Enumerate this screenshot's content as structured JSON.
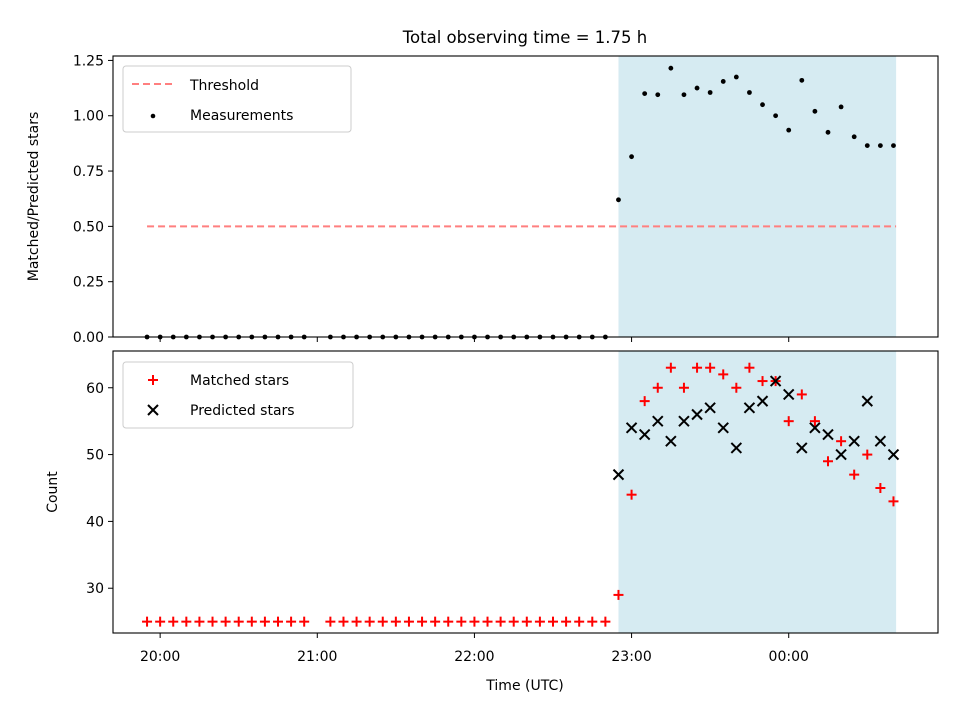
{
  "chart_data": [
    {
      "type": "scatter",
      "title": "Total observing time = 1.75 h",
      "ylabel": "Matched/Predicted stars",
      "xlabel": "",
      "xlim": [
        "19:42",
        "00:57"
      ],
      "ylim": [
        0,
        1.27
      ],
      "yticks": [
        "0.00",
        "0.25",
        "0.50",
        "0.75",
        "1.00",
        "1.25"
      ],
      "legend_position": "top-left",
      "grid": false,
      "shaded_region": {
        "start": "22:55",
        "end": "00:41",
        "color": "#add8e6"
      },
      "threshold": {
        "name": "Threshold",
        "value": 0.5,
        "from": "19:55",
        "to": "00:41",
        "color": "#ff7f7f",
        "style": "dashed"
      },
      "series": [
        {
          "name": "Measurements",
          "marker": "dot",
          "color": "#000000",
          "x": [
            "19:55",
            "20:00",
            "20:05",
            "20:10",
            "20:15",
            "20:20",
            "20:25",
            "20:30",
            "20:35",
            "20:40",
            "20:45",
            "20:50",
            "20:55",
            "21:05",
            "21:10",
            "21:15",
            "21:20",
            "21:25",
            "21:30",
            "21:35",
            "21:40",
            "21:45",
            "21:50",
            "21:55",
            "22:00",
            "22:05",
            "22:10",
            "22:15",
            "22:20",
            "22:25",
            "22:30",
            "22:35",
            "22:40",
            "22:45",
            "22:50",
            "22:55",
            "23:00",
            "23:05",
            "23:10",
            "23:15",
            "23:20",
            "23:25",
            "23:30",
            "23:35",
            "23:40",
            "23:45",
            "23:50",
            "23:55",
            "00:00",
            "00:05",
            "00:10",
            "00:15",
            "00:20",
            "00:25",
            "00:30",
            "00:35",
            "00:40"
          ],
          "y": [
            0,
            0,
            0,
            0,
            0,
            0,
            0,
            0,
            0,
            0,
            0,
            0,
            0,
            0,
            0,
            0,
            0,
            0,
            0,
            0,
            0,
            0,
            0,
            0,
            0,
            0,
            0,
            0,
            0,
            0,
            0,
            0,
            0,
            0,
            0,
            0.62,
            0.815,
            1.1,
            1.095,
            1.215,
            1.095,
            1.125,
            1.105,
            1.155,
            1.175,
            1.105,
            1.05,
            1.0,
            0.935,
            1.16,
            1.02,
            0.925,
            1.04,
            0.905,
            0.865,
            0.865,
            0.865
          ]
        }
      ]
    },
    {
      "type": "scatter",
      "title": "",
      "ylabel": "Count",
      "xlabel": "Time (UTC)",
      "xlim": [
        "19:42",
        "00:57"
      ],
      "ylim": [
        23.3,
        65.5
      ],
      "yticks": [
        "30",
        "40",
        "50",
        "60"
      ],
      "xticks": [
        "20:00",
        "21:00",
        "22:00",
        "23:00",
        "00:00"
      ],
      "legend_position": "top-left",
      "grid": false,
      "shaded_region": {
        "start": "22:55",
        "end": "00:41",
        "color": "#add8e6"
      },
      "series": [
        {
          "name": "Matched stars",
          "marker": "plus",
          "color": "#ff0000",
          "x": [
            "19:55",
            "20:00",
            "20:05",
            "20:10",
            "20:15",
            "20:20",
            "20:25",
            "20:30",
            "20:35",
            "20:40",
            "20:45",
            "20:50",
            "20:55",
            "21:05",
            "21:10",
            "21:15",
            "21:20",
            "21:25",
            "21:30",
            "21:35",
            "21:40",
            "21:45",
            "21:50",
            "21:55",
            "22:00",
            "22:05",
            "22:10",
            "22:15",
            "22:20",
            "22:25",
            "22:30",
            "22:35",
            "22:40",
            "22:45",
            "22:50",
            "22:55",
            "23:00",
            "23:05",
            "23:10",
            "23:15",
            "23:20",
            "23:25",
            "23:30",
            "23:35",
            "23:40",
            "23:45",
            "23:50",
            "23:55",
            "00:00",
            "00:05",
            "00:10",
            "00:15",
            "00:20",
            "00:25",
            "00:30",
            "00:35",
            "00:40"
          ],
          "y": [
            25,
            25,
            25,
            25,
            25,
            25,
            25,
            25,
            25,
            25,
            25,
            25,
            25,
            25,
            25,
            25,
            25,
            25,
            25,
            25,
            25,
            25,
            25,
            25,
            25,
            25,
            25,
            25,
            25,
            25,
            25,
            25,
            25,
            25,
            25,
            29,
            44,
            58,
            60,
            63,
            60,
            63,
            63,
            62,
            60,
            63,
            61,
            61,
            55,
            59,
            55,
            49,
            52,
            47,
            50,
            45,
            43
          ]
        },
        {
          "name": "Predicted stars",
          "marker": "x",
          "color": "#000000",
          "x": [
            "22:55",
            "23:00",
            "23:05",
            "23:10",
            "23:15",
            "23:20",
            "23:25",
            "23:30",
            "23:35",
            "23:40",
            "23:45",
            "23:50",
            "23:55",
            "00:00",
            "00:05",
            "00:10",
            "00:15",
            "00:20",
            "00:25",
            "00:30",
            "00:35",
            "00:40"
          ],
          "y": [
            47,
            54,
            53,
            55,
            52,
            55,
            56,
            57,
            54,
            51,
            57,
            58,
            61,
            59,
            51,
            54,
            53,
            50,
            52,
            58,
            52,
            50
          ]
        }
      ]
    }
  ]
}
